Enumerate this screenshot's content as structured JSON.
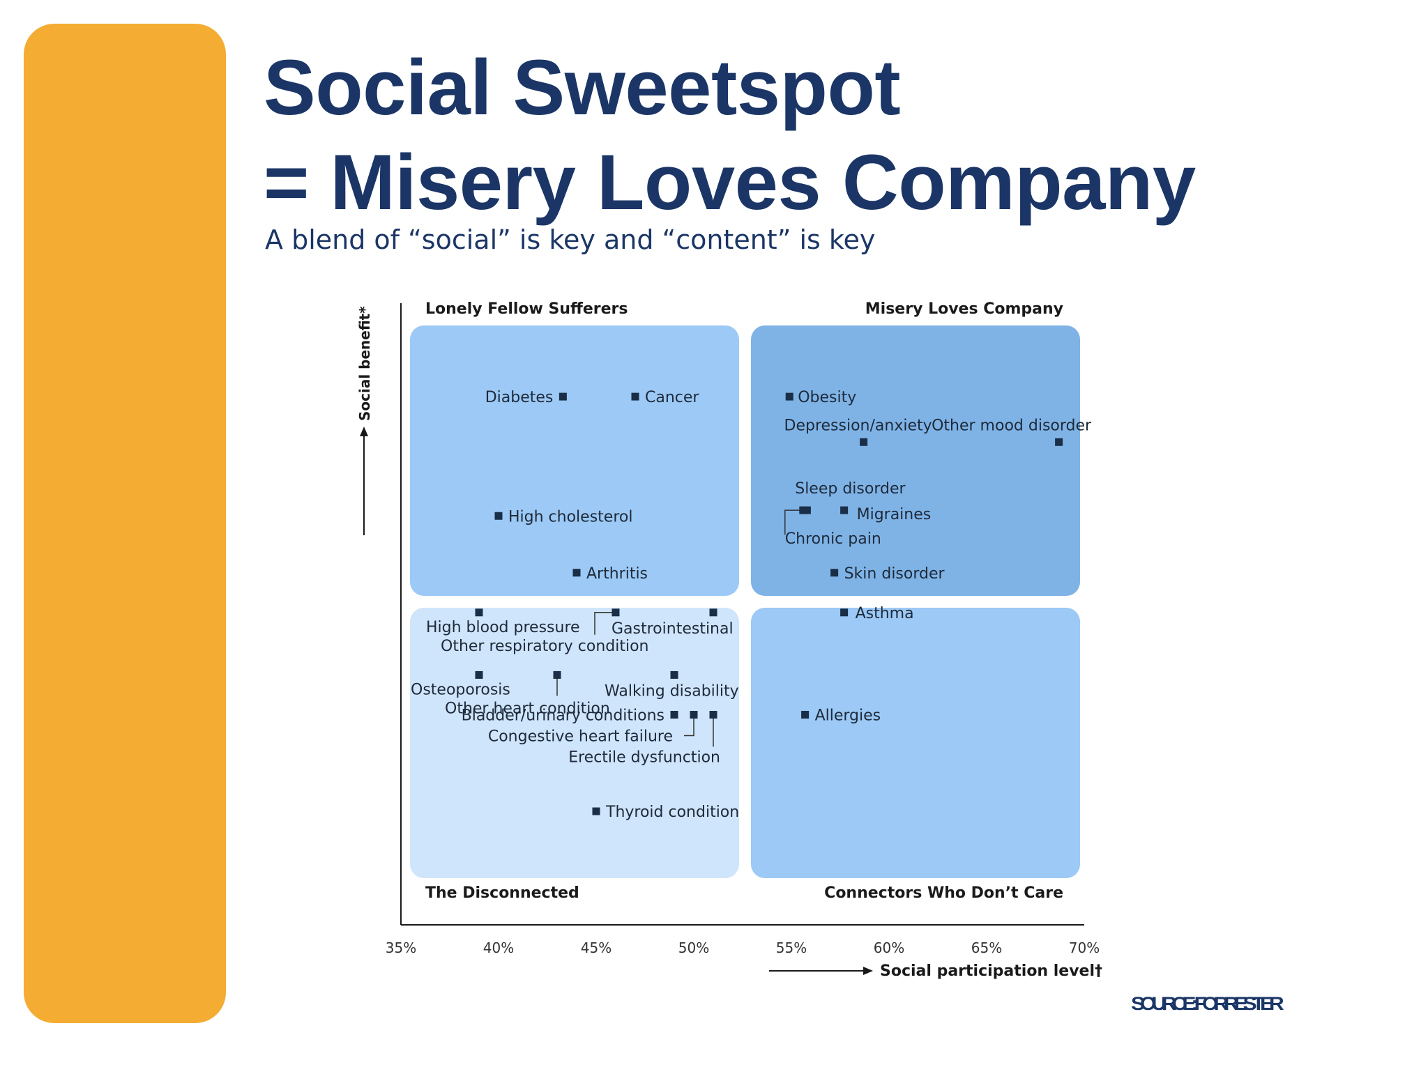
{
  "slide": {
    "title_line1": "Social Sweetspot",
    "title_line2": "= Misery Loves Company",
    "subtitle": "A blend of “social” is key and “content” is key",
    "source": "SOURCE: FORRESTER"
  },
  "colors": {
    "accent": "#f4ac33",
    "title": "#1b3666",
    "quadrant_top_left": "#9cc9f5",
    "quadrant_top_right": "#7fb3e6",
    "quadrant_bottom_left": "#cfe5fb",
    "quadrant_bottom_right": "#9cc9f5",
    "marker": "#1a2e47"
  },
  "chart_data": {
    "type": "scatter",
    "title": "",
    "xlabel": "Social participation level†",
    "ylabel": "Social benefit*",
    "xlim": [
      35,
      70
    ],
    "x_unit": "%",
    "xticks": [
      "35%",
      "40%",
      "45%",
      "50%",
      "55%",
      "60%",
      "65%",
      "70%"
    ],
    "grid": false,
    "quadrants": [
      {
        "name": "Lonely Fellow Sufferers",
        "position": "top-left"
      },
      {
        "name": "Misery Loves Company",
        "position": "top-right"
      },
      {
        "name": "The Disconnected",
        "position": "bottom-left"
      },
      {
        "name": "Connectors Who Don’t Care",
        "position": "bottom-right"
      }
    ],
    "points": [
      {
        "label": "Diabetes",
        "x": 43.3,
        "y": 0.86
      },
      {
        "label": "Cancer",
        "x": 47.0,
        "y": 0.86
      },
      {
        "label": "High cholesterol",
        "x": 40.0,
        "y": 0.65
      },
      {
        "label": "Arthritis",
        "x": 44.0,
        "y": 0.55
      },
      {
        "label": "Obesity",
        "x": 54.9,
        "y": 0.86
      },
      {
        "label": "Depression/anxiety",
        "x": 58.7,
        "y": 0.78
      },
      {
        "label": "Other mood disorder",
        "x": 68.7,
        "y": 0.78
      },
      {
        "label": "Sleep disorder",
        "x": 55.8,
        "y": 0.66
      },
      {
        "label": "Migraines",
        "x": 57.7,
        "y": 0.66
      },
      {
        "label": "Chronic pain",
        "x": 55.6,
        "y": 0.66
      },
      {
        "label": "Skin disorder",
        "x": 57.2,
        "y": 0.55
      },
      {
        "label": "Asthma",
        "x": 57.7,
        "y": 0.48
      },
      {
        "label": "Allergies",
        "x": 55.7,
        "y": 0.3
      },
      {
        "label": "High blood pressure",
        "x": 39.0,
        "y": 0.48
      },
      {
        "label": "Gastrointestinal",
        "x": 46.0,
        "y": 0.48
      },
      {
        "label": "Other respiratory condition",
        "x": 51.0,
        "y": 0.48
      },
      {
        "label": "Osteoporosis",
        "x": 39.0,
        "y": 0.37
      },
      {
        "label": "Other heart condition",
        "x": 43.0,
        "y": 0.37
      },
      {
        "label": "Walking disability",
        "x": 49.0,
        "y": 0.37
      },
      {
        "label": "Bladder/urinary conditions",
        "x": 49.0,
        "y": 0.3
      },
      {
        "label": "Congestive heart failure",
        "x": 50.0,
        "y": 0.3
      },
      {
        "label": "Erectile dysfunction",
        "x": 51.0,
        "y": 0.3
      },
      {
        "label": "Thyroid condition",
        "x": 45.0,
        "y": 0.13
      }
    ]
  }
}
